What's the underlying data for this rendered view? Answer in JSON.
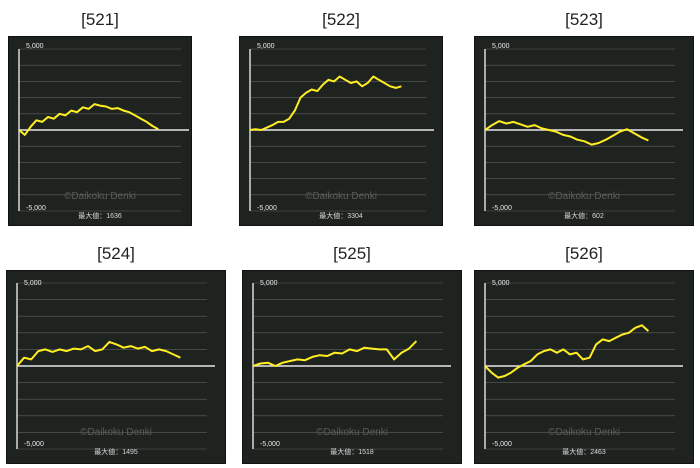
{
  "colors": {
    "background": "#1f2320",
    "line": "#ffee22",
    "zero_line": "#e6e6e6",
    "grid": "#5c5f5c"
  },
  "watermark": "©Daikoku Denki",
  "chart_data": [
    {
      "type": "line",
      "title": "[521]",
      "tick_top": "5,000",
      "tick_bottom": "-5,000",
      "ylim": [
        -5000,
        5000
      ],
      "max_label": "最大値：1636",
      "values": [
        0,
        -300,
        200,
        600,
        500,
        800,
        700,
        1000,
        900,
        1200,
        1100,
        1400,
        1300,
        1600,
        1500,
        1450,
        1300,
        1350,
        1200,
        1100,
        900,
        700,
        500,
        250,
        50
      ]
    },
    {
      "type": "line",
      "title": "[522]",
      "tick_top": "5,000",
      "tick_bottom": "-5,000",
      "ylim": [
        -5000,
        5000
      ],
      "max_label": "最大値：3304",
      "values": [
        0,
        50,
        0,
        150,
        300,
        500,
        500,
        700,
        1200,
        2000,
        2300,
        2500,
        2400,
        2800,
        3100,
        3000,
        3300,
        3100,
        2900,
        3000,
        2700,
        2900,
        3300,
        3100,
        2900,
        2700,
        2600,
        2700
      ]
    },
    {
      "type": "line",
      "title": "[523]",
      "tick_top": "5,000",
      "tick_bottom": "-5,000",
      "ylim": [
        -5000,
        5000
      ],
      "max_label": "最大値：602",
      "values": [
        0,
        300,
        550,
        400,
        500,
        350,
        200,
        300,
        100,
        0,
        -100,
        -300,
        -400,
        -600,
        -700,
        -900,
        -800,
        -600,
        -350,
        -100,
        50,
        -200,
        -450,
        -650
      ]
    },
    {
      "type": "line",
      "title": "[524]",
      "tick_top": "5,000",
      "tick_bottom": "-5,000",
      "ylim": [
        -5000,
        5000
      ],
      "max_label": "最大値：1495",
      "values": [
        0,
        500,
        400,
        900,
        1000,
        850,
        1000,
        900,
        1050,
        1000,
        1200,
        900,
        1000,
        1450,
        1300,
        1100,
        1200,
        1050,
        1150,
        900,
        1000,
        900,
        700,
        500
      ]
    },
    {
      "type": "line",
      "title": "[525]",
      "tick_top": "5,000",
      "tick_bottom": "-5,000",
      "ylim": [
        -5000,
        5000
      ],
      "max_label": "最大値：1518",
      "values": [
        0,
        150,
        200,
        0,
        200,
        300,
        400,
        350,
        550,
        650,
        600,
        800,
        750,
        1000,
        900,
        1100,
        1050,
        1000,
        1000,
        400,
        800,
        1050,
        1500
      ]
    },
    {
      "type": "line",
      "title": "[526]",
      "tick_top": "5,000",
      "tick_bottom": "-5,000",
      "ylim": [
        -5000,
        5000
      ],
      "max_label": "最大値：2463",
      "values": [
        0,
        -400,
        -700,
        -600,
        -400,
        -100,
        100,
        300,
        700,
        900,
        1000,
        800,
        1000,
        700,
        800,
        400,
        500,
        1300,
        1600,
        1500,
        1700,
        1900,
        2000,
        2300,
        2450,
        2100
      ]
    }
  ]
}
